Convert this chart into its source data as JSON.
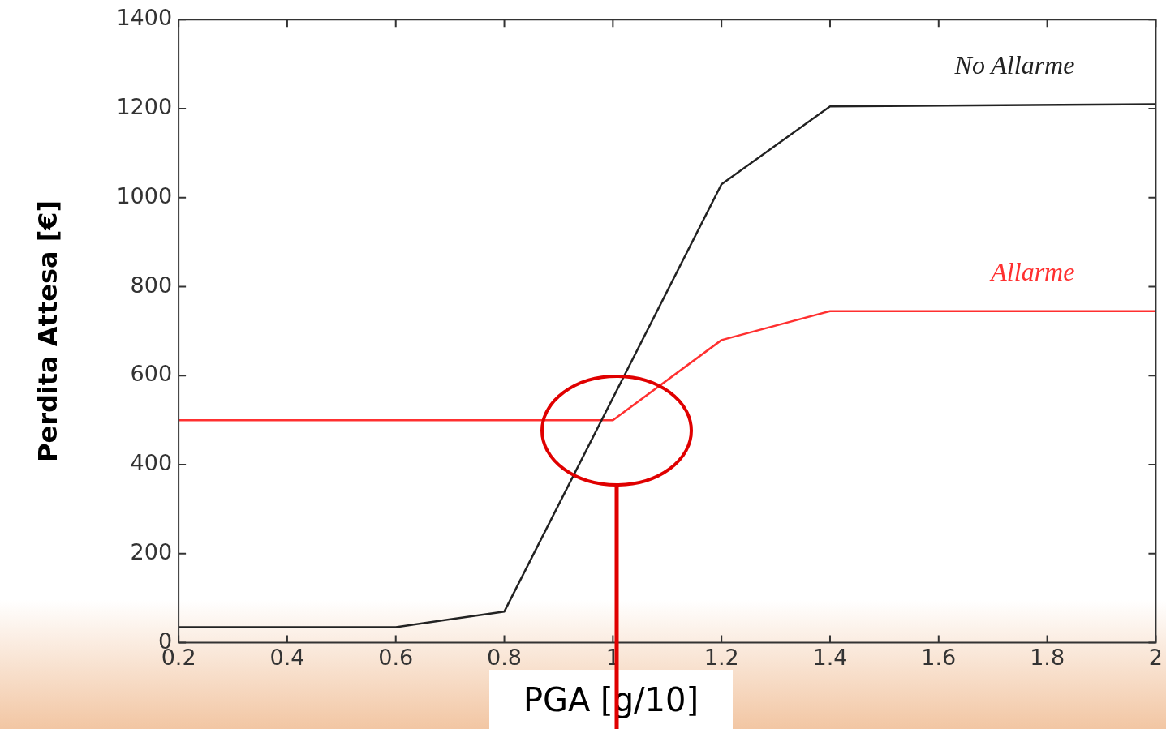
{
  "chart_data": {
    "type": "line",
    "xlabel": "PGA [g/10]",
    "ylabel": "Perdita Attesa [€]",
    "xlim": [
      0.2,
      2
    ],
    "xticks": [
      0.2,
      0.4,
      0.6,
      0.8,
      1,
      1.2,
      1.4,
      1.6,
      1.8,
      2
    ],
    "ylim": [
      0,
      1400
    ],
    "yticks": [
      0,
      200,
      400,
      600,
      800,
      1000,
      1200,
      1400
    ],
    "grid": false,
    "legend": false,
    "marker": "none",
    "line_style": "solid",
    "series": [
      {
        "name": "No Allarme",
        "color": "#222222",
        "x": [
          0.2,
          0.6,
          0.8,
          1.2,
          1.4,
          2
        ],
        "values": [
          35,
          35,
          70,
          1030,
          1205,
          1210
        ]
      },
      {
        "name": "Allarme",
        "color": "#ff3030",
        "x": [
          0.2,
          1.0,
          1.2,
          1.4,
          2
        ],
        "values": [
          500,
          500,
          680,
          745,
          745
        ]
      }
    ]
  }
}
